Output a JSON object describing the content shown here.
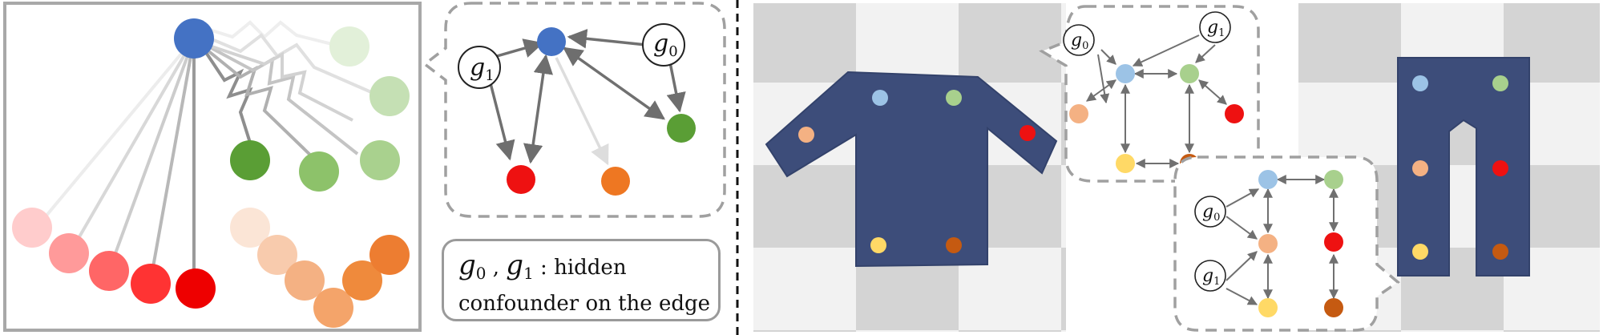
{
  "legend": {
    "var0_base": "g",
    "var0_sub": "0",
    "separator": " , ",
    "var1_base": "g",
    "var1_sub": "1",
    "colon_text": " : hidden",
    "line2": "confounder on the edge"
  },
  "hidden_nodes": {
    "panel1_g0": {
      "base": "g",
      "sub": "0"
    },
    "panel1_g1": {
      "base": "g",
      "sub": "1"
    },
    "shirt_g0": {
      "base": "g",
      "sub": "0"
    },
    "shirt_g1": {
      "base": "g",
      "sub": "1"
    },
    "pants_g0": {
      "base": "g",
      "sub": "0"
    },
    "pants_g1": {
      "base": "g",
      "sub": "1"
    }
  },
  "colors": {
    "blue": "#4472c4",
    "green_dark": "#5a9e35",
    "red": "#ee1111",
    "orange": "#ee7722",
    "light_blue": "#9cc3e6",
    "light_green": "#a8d08d",
    "peach": "#f4b183",
    "yellow": "#ffd966",
    "brown": "#c55a11",
    "garment": "#3d4d7a",
    "dashed_border": "#a0a0a0"
  }
}
